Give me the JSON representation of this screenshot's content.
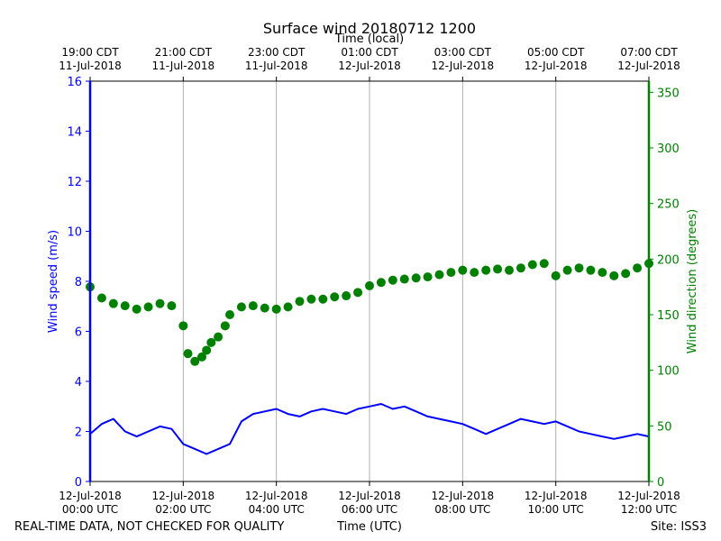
{
  "chart_data": {
    "type": "line",
    "title": "Surface wind 20180712 1200",
    "top_axis_label": "Time (local)",
    "xlabel": "Time (UTC)",
    "ylabel_left": "Wind speed (m/s)",
    "ylabel_right": "Wind direction (degrees)",
    "footer_left": "REAL-TIME DATA, NOT CHECKED FOR QUALITY",
    "footer_right": "Site: ISS3",
    "x_range_hours_utc": [
      0,
      12
    ],
    "ylim_left": [
      0,
      16
    ],
    "ylim_right": [
      0,
      360
    ],
    "y_ticks_left": [
      "0",
      "2",
      "4",
      "6",
      "8",
      "10",
      "12",
      "14",
      "16"
    ],
    "y_ticks_right": [
      "0",
      "50",
      "100",
      "150",
      "200",
      "250",
      "300",
      "350"
    ],
    "x_ticks_bottom": [
      {
        "hour": 0,
        "line1": "12-Jul-2018",
        "line2": "00:00 UTC"
      },
      {
        "hour": 2,
        "line1": "12-Jul-2018",
        "line2": "02:00 UTC"
      },
      {
        "hour": 4,
        "line1": "12-Jul-2018",
        "line2": "04:00 UTC"
      },
      {
        "hour": 6,
        "line1": "12-Jul-2018",
        "line2": "06:00 UTC"
      },
      {
        "hour": 8,
        "line1": "12-Jul-2018",
        "line2": "08:00 UTC"
      },
      {
        "hour": 10,
        "line1": "12-Jul-2018",
        "line2": "10:00 UTC"
      },
      {
        "hour": 12,
        "line1": "12-Jul-2018",
        "line2": "12:00 UTC"
      }
    ],
    "x_ticks_top": [
      {
        "hour": 0,
        "line1": "19:00 CDT",
        "line2": "11-Jul-2018"
      },
      {
        "hour": 2,
        "line1": "21:00 CDT",
        "line2": "11-Jul-2018"
      },
      {
        "hour": 4,
        "line1": "23:00 CDT",
        "line2": "11-Jul-2018"
      },
      {
        "hour": 6,
        "line1": "01:00 CDT",
        "line2": "12-Jul-2018"
      },
      {
        "hour": 8,
        "line1": "03:00 CDT",
        "line2": "12-Jul-2018"
      },
      {
        "hour": 10,
        "line1": "05:00 CDT",
        "line2": "12-Jul-2018"
      },
      {
        "hour": 12,
        "line1": "07:00 CDT",
        "line2": "12-Jul-2018"
      }
    ],
    "grid": "vertical lines at tick hours",
    "speed_color": "#0000ff",
    "direction_color": "#008000",
    "series": [
      {
        "kind": "line",
        "axis": "left",
        "x_hours": [
          0.0,
          0.25,
          0.5,
          0.75,
          1.0,
          1.25,
          1.5,
          1.75,
          2.0,
          2.25,
          2.5,
          2.75,
          3.0,
          3.25,
          3.5,
          3.75,
          4.0,
          4.25,
          4.5,
          4.75,
          5.0,
          5.25,
          5.5,
          5.75,
          6.0,
          6.25,
          6.5,
          6.75,
          7.0,
          7.25,
          7.5,
          7.75,
          8.0,
          8.25,
          8.5,
          8.75,
          9.0,
          9.25,
          9.5,
          9.75,
          10.0,
          10.25,
          10.5,
          10.75,
          11.0,
          11.25,
          11.5,
          11.75,
          12.0
        ],
        "values": [
          1.9,
          2.3,
          2.5,
          2.0,
          1.8,
          2.0,
          2.2,
          2.1,
          1.5,
          1.3,
          1.1,
          1.3,
          1.5,
          2.4,
          2.7,
          2.8,
          2.9,
          2.7,
          2.6,
          2.8,
          2.9,
          2.8,
          2.7,
          2.9,
          3.0,
          3.1,
          2.9,
          3.0,
          2.8,
          2.6,
          2.5,
          2.4,
          2.3,
          2.1,
          1.9,
          2.1,
          2.3,
          2.5,
          2.4,
          2.3,
          2.4,
          2.2,
          2.0,
          1.9,
          1.8,
          1.7,
          1.8,
          1.9,
          1.8
        ]
      },
      {
        "kind": "scatter",
        "axis": "right",
        "x_hours": [
          0.0,
          0.25,
          0.5,
          0.75,
          1.0,
          1.25,
          1.5,
          1.75,
          2.0,
          2.1,
          2.25,
          2.4,
          2.5,
          2.6,
          2.75,
          2.9,
          3.0,
          3.25,
          3.5,
          3.75,
          4.0,
          4.25,
          4.5,
          4.75,
          5.0,
          5.25,
          5.5,
          5.75,
          6.0,
          6.25,
          6.5,
          6.75,
          7.0,
          7.25,
          7.5,
          7.75,
          8.0,
          8.25,
          8.5,
          8.75,
          9.0,
          9.25,
          9.5,
          9.75,
          10.0,
          10.25,
          10.5,
          10.75,
          11.0,
          11.25,
          11.5,
          11.75,
          12.0
        ],
        "values": [
          175,
          165,
          160,
          158,
          155,
          157,
          160,
          158,
          140,
          115,
          108,
          112,
          118,
          125,
          130,
          140,
          150,
          157,
          158,
          156,
          155,
          157,
          162,
          164,
          164,
          166,
          167,
          170,
          176,
          179,
          181,
          182,
          183,
          184,
          186,
          188,
          190,
          188,
          190,
          191,
          190,
          192,
          195,
          196,
          185,
          190,
          192,
          190,
          188,
          185,
          187,
          192,
          196
        ]
      }
    ]
  }
}
